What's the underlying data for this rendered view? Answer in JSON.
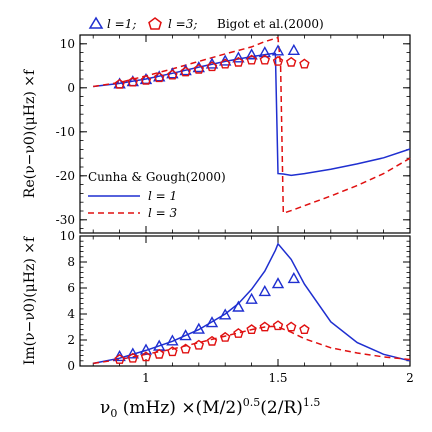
{
  "legend_top": {
    "l1_label": "l =1;",
    "l3_label": "l =3;",
    "source": "Bigot et al.(2000)"
  },
  "legend_bottom": {
    "title": "Cunha & Gough(2000)",
    "l1_label": "l = 1",
    "l3_label": "l = 3"
  },
  "xlabel": "ν0 (mHz) ×(M/2)^0.5(2/R)^1.5",
  "xlabel_parts": {
    "nu": "ν",
    "sub0": "0",
    "mhz": " (mHz) ×(M/2)",
    "exp1": "0.5",
    "mid": "(2/R)",
    "exp2": "1.5"
  },
  "ylabel_top": "Re(ν−ν0)(μHz) ×f",
  "ylabel_bottom": "Im(ν−ν0)(μHz) ×f",
  "colors": {
    "l1": "#1f2fd0",
    "l3": "#e01010",
    "axis": "#000000"
  },
  "chart_data": [
    {
      "type": "line",
      "panel": "top",
      "xlim": [
        0.75,
        2.0
      ],
      "ylim": [
        -33,
        12
      ],
      "xticks": [
        1,
        1.5,
        2
      ],
      "yticks": [
        -30,
        -20,
        -10,
        0,
        10
      ],
      "ylabel": "Re(ν−ν0)(μHz) ×f",
      "series": [
        {
          "name": "Cunha & Gough l = 1",
          "style": "solid",
          "color": "#1f2fd0",
          "x": [
            0.8,
            0.9,
            1.0,
            1.1,
            1.2,
            1.3,
            1.4,
            1.48,
            1.49,
            1.5,
            1.52,
            1.55,
            1.6,
            1.7,
            1.8,
            1.9,
            2.0
          ],
          "y": [
            0.3,
            1.0,
            2.0,
            3.3,
            4.7,
            6.0,
            7.1,
            7.8,
            7.8,
            -19.5,
            -19.6,
            -19.9,
            -19.5,
            -18.5,
            -17.3,
            -15.9,
            -13.9
          ]
        },
        {
          "name": "Cunha & Gough l = 3",
          "style": "dashed",
          "color": "#e01010",
          "x": [
            0.8,
            0.9,
            1.0,
            1.1,
            1.2,
            1.3,
            1.4,
            1.45,
            1.5,
            1.51,
            1.52,
            1.55,
            1.6,
            1.7,
            1.8,
            1.9,
            2.0
          ],
          "y": [
            0.3,
            1.2,
            2.7,
            4.3,
            6.0,
            7.7,
            9.3,
            10.5,
            11.4,
            5.0,
            -28.5,
            -27.9,
            -26.8,
            -24.6,
            -22.2,
            -19.5,
            -16.0
          ]
        },
        {
          "name": "Bigot l = 1",
          "style": "triangle",
          "color": "#1f2fd0",
          "x": [
            0.9,
            0.95,
            1.0,
            1.05,
            1.1,
            1.15,
            1.2,
            1.25,
            1.3,
            1.35,
            1.4,
            1.45,
            1.5,
            1.56
          ],
          "y": [
            0.8,
            1.3,
            1.8,
            2.4,
            3.1,
            3.8,
            4.5,
            5.3,
            6.0,
            6.7,
            7.4,
            7.9,
            8.3,
            8.4
          ]
        },
        {
          "name": "Bigot l = 3",
          "style": "pentagon",
          "color": "#e01010",
          "x": [
            0.9,
            0.95,
            1.0,
            1.05,
            1.1,
            1.15,
            1.2,
            1.25,
            1.3,
            1.35,
            1.4,
            1.45,
            1.5,
            1.55,
            1.6
          ],
          "y": [
            0.8,
            1.3,
            1.7,
            2.3,
            2.9,
            3.6,
            4.2,
            4.8,
            5.4,
            5.8,
            6.3,
            6.3,
            6.0,
            5.8,
            5.4
          ]
        }
      ]
    },
    {
      "type": "line",
      "panel": "bottom",
      "xlim": [
        0.75,
        2.0
      ],
      "ylim": [
        0,
        10
      ],
      "xticks": [
        1,
        1.5,
        2
      ],
      "xtick_labels": [
        "1",
        "1.5",
        "2"
      ],
      "yticks": [
        0,
        2,
        4,
        6,
        8,
        10
      ],
      "ylabel": "Im(ν−ν0)(μHz) ×f",
      "series": [
        {
          "name": "Cunha & Gough l = 1",
          "style": "solid",
          "color": "#1f2fd0",
          "x": [
            0.8,
            0.9,
            1.0,
            1.1,
            1.2,
            1.3,
            1.35,
            1.4,
            1.45,
            1.49,
            1.5,
            1.55,
            1.6,
            1.7,
            1.8,
            1.9,
            2.0
          ],
          "y": [
            0.2,
            0.6,
            1.2,
            1.9,
            2.8,
            4.0,
            4.8,
            5.9,
            7.3,
            8.9,
            9.4,
            8.2,
            6.3,
            3.4,
            1.8,
            0.9,
            0.4
          ]
        },
        {
          "name": "Cunha & Gough l = 3",
          "style": "dashed",
          "color": "#e01010",
          "x": [
            0.8,
            0.9,
            1.0,
            1.1,
            1.2,
            1.3,
            1.4,
            1.45,
            1.48,
            1.5,
            1.55,
            1.6,
            1.7,
            1.8,
            1.9,
            2.0
          ],
          "y": [
            0.2,
            0.5,
            0.9,
            1.3,
            1.8,
            2.3,
            2.8,
            3.0,
            3.05,
            3.0,
            2.6,
            2.1,
            1.4,
            1.0,
            0.7,
            0.5
          ]
        },
        {
          "name": "Bigot l = 1",
          "style": "triangle",
          "color": "#1f2fd0",
          "x": [
            0.9,
            0.95,
            1.0,
            1.05,
            1.1,
            1.15,
            1.2,
            1.25,
            1.3,
            1.35,
            1.4,
            1.45,
            1.5,
            1.56
          ],
          "y": [
            0.7,
            0.9,
            1.2,
            1.5,
            1.9,
            2.3,
            2.8,
            3.3,
            3.9,
            4.5,
            5.1,
            5.7,
            6.3,
            6.7
          ]
        },
        {
          "name": "Bigot l = 3",
          "style": "pentagon",
          "color": "#e01010",
          "x": [
            0.9,
            0.95,
            1.0,
            1.05,
            1.1,
            1.15,
            1.2,
            1.25,
            1.3,
            1.35,
            1.4,
            1.45,
            1.5,
            1.55,
            1.6
          ],
          "y": [
            0.5,
            0.6,
            0.7,
            0.9,
            1.1,
            1.3,
            1.6,
            1.9,
            2.2,
            2.5,
            2.8,
            3.0,
            3.1,
            3.0,
            2.8
          ]
        }
      ]
    }
  ]
}
